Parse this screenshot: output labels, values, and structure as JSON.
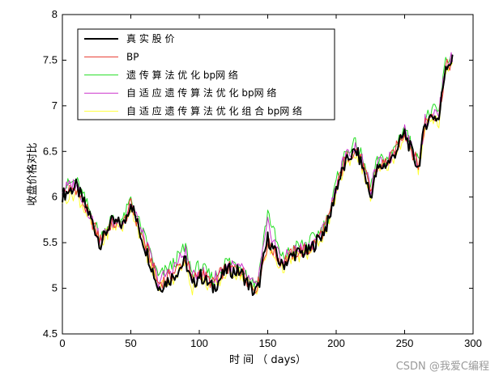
{
  "chart_data": {
    "type": "line",
    "title": "",
    "xlabel": "时 间 （ days）",
    "ylabel": "收盘价格对比",
    "xlim": [
      0,
      300
    ],
    "ylim": [
      4.5,
      8
    ],
    "xticks": [
      "0",
      "50",
      "100",
      "150",
      "200",
      "250",
      "300"
    ],
    "yticks": [
      "4.5",
      "5",
      "5.5",
      "6",
      "6.5",
      "7",
      "7.5",
      "8"
    ],
    "grid": false,
    "legend_position": "top-left",
    "x_points": [
      0,
      10,
      20,
      28,
      35,
      45,
      50,
      57,
      65,
      70,
      80,
      90,
      95,
      100,
      110,
      115,
      120,
      130,
      140,
      143,
      150,
      160,
      170,
      180,
      190,
      195,
      200,
      205,
      210,
      215,
      220,
      225,
      230,
      240,
      250,
      255,
      260,
      265,
      270,
      275,
      280,
      285
    ],
    "series": [
      {
        "name": "真 实 股 价",
        "color": "#000000",
        "values": [
          6.02,
          6.12,
          5.8,
          5.48,
          5.72,
          5.7,
          5.95,
          5.6,
          5.25,
          5.0,
          5.12,
          5.3,
          5.02,
          5.15,
          5.0,
          5.1,
          5.2,
          5.18,
          4.95,
          5.0,
          5.55,
          5.25,
          5.38,
          5.4,
          5.6,
          5.75,
          6.1,
          6.3,
          6.45,
          6.5,
          6.3,
          6.0,
          6.3,
          6.4,
          6.7,
          6.5,
          6.32,
          6.8,
          6.9,
          6.85,
          7.45,
          7.5
        ]
      },
      {
        "name": "BP",
        "color": "#e8382e",
        "values": [
          6.05,
          6.1,
          5.78,
          5.52,
          5.7,
          5.72,
          5.92,
          5.62,
          5.3,
          5.05,
          5.15,
          5.32,
          5.08,
          5.18,
          5.05,
          5.15,
          5.22,
          5.2,
          5.0,
          5.05,
          5.5,
          5.28,
          5.4,
          5.42,
          5.62,
          5.78,
          6.08,
          6.35,
          6.48,
          6.52,
          6.32,
          6.05,
          6.32,
          6.42,
          6.72,
          6.52,
          6.35,
          6.82,
          6.92,
          6.88,
          7.42,
          7.48
        ]
      },
      {
        "name": "遗 传 算 法 优 化 bp网 络",
        "color": "#22dd22",
        "values": [
          6.1,
          6.18,
          5.85,
          5.55,
          5.75,
          5.76,
          5.98,
          5.68,
          5.35,
          5.12,
          5.25,
          5.45,
          5.15,
          5.25,
          5.1,
          5.2,
          5.3,
          5.25,
          5.05,
          5.1,
          5.85,
          5.32,
          5.45,
          5.5,
          5.65,
          5.82,
          6.15,
          6.42,
          6.55,
          6.58,
          6.38,
          6.1,
          6.38,
          6.45,
          6.78,
          6.55,
          6.38,
          6.85,
          6.95,
          6.92,
          7.5,
          7.55
        ]
      },
      {
        "name": "自 适 应 遗 传 算 法 优 化 bp网 络",
        "color": "#cc33cc",
        "values": [
          6.08,
          6.15,
          5.82,
          5.5,
          5.72,
          5.74,
          5.95,
          5.65,
          5.32,
          5.08,
          5.2,
          5.4,
          5.1,
          5.2,
          5.08,
          5.18,
          5.25,
          5.22,
          5.02,
          5.08,
          5.7,
          5.3,
          5.42,
          5.45,
          5.63,
          5.8,
          6.12,
          6.38,
          6.5,
          6.55,
          6.35,
          6.08,
          6.35,
          6.43,
          6.75,
          6.53,
          6.36,
          6.83,
          6.93,
          6.9,
          7.47,
          7.52
        ]
      },
      {
        "name": "自 适 应 遗 传 算 法 优 化 组 合 bp网 络",
        "color": "#ffff33",
        "values": [
          5.98,
          6.05,
          5.75,
          5.45,
          5.68,
          5.68,
          5.9,
          5.58,
          5.22,
          5.02,
          5.1,
          5.28,
          5.0,
          5.12,
          5.0,
          5.08,
          5.18,
          5.16,
          4.98,
          5.02,
          5.45,
          5.22,
          5.35,
          5.38,
          5.58,
          5.72,
          6.05,
          6.28,
          6.42,
          6.48,
          6.28,
          5.98,
          6.28,
          6.38,
          6.68,
          6.48,
          6.3,
          6.78,
          6.88,
          6.82,
          7.4,
          7.45
        ]
      }
    ]
  },
  "watermark": "CSDN @我爱C编程"
}
